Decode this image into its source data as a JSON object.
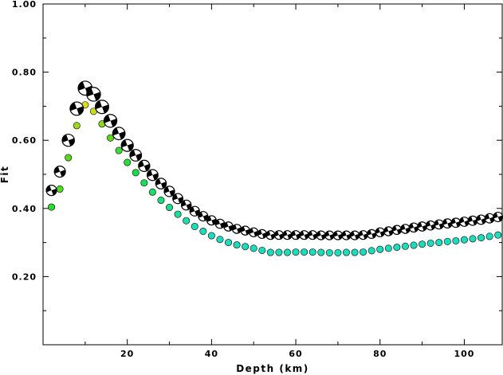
{
  "chart_data": {
    "type": "scatter",
    "xlabel": "Depth (km)",
    "ylabel": "Fit",
    "xlim": [
      0,
      109
    ],
    "ylim": [
      0.0,
      1.0
    ],
    "xticks": [
      20,
      40,
      60,
      80,
      100
    ],
    "yticks": [
      0.2,
      0.4,
      0.6,
      0.8,
      1.0
    ],
    "x_tick_labels": [
      "20",
      "40",
      "60",
      "80",
      "100"
    ],
    "y_tick_labels": [
      "0.20",
      "0.40",
      "0.60",
      "0.80",
      "1.00"
    ],
    "grid": false,
    "series": [
      {
        "marker": "focal-mechanism beachball",
        "color": "#000000",
        "x": [
          2,
          4,
          6,
          8,
          10,
          12,
          14,
          16,
          18,
          20,
          22,
          24,
          26,
          28,
          30,
          32,
          34,
          36,
          38,
          40,
          42,
          44,
          46,
          48,
          50,
          52,
          54,
          56,
          58,
          60,
          62,
          64,
          66,
          68,
          70,
          72,
          74,
          76,
          78,
          80,
          82,
          84,
          86,
          88,
          90,
          92,
          94,
          96,
          98,
          100,
          102,
          104,
          106,
          108
        ],
        "y": [
          0.453,
          0.508,
          0.6,
          0.693,
          0.753,
          0.735,
          0.698,
          0.657,
          0.62,
          0.585,
          0.556,
          0.525,
          0.498,
          0.473,
          0.45,
          0.429,
          0.41,
          0.392,
          0.377,
          0.365,
          0.355,
          0.347,
          0.34,
          0.335,
          0.33,
          0.325,
          0.322,
          0.322,
          0.322,
          0.322,
          0.322,
          0.322,
          0.321,
          0.321,
          0.321,
          0.321,
          0.321,
          0.322,
          0.325,
          0.33,
          0.333,
          0.337,
          0.34,
          0.344,
          0.347,
          0.35,
          0.353,
          0.356,
          0.358,
          0.361,
          0.364,
          0.367,
          0.371,
          0.375
        ]
      },
      {
        "marker": "filled circle",
        "x": [
          2,
          4,
          6,
          8,
          10,
          12,
          14,
          16,
          18,
          20,
          22,
          24,
          26,
          28,
          30,
          32,
          34,
          36,
          38,
          40,
          42,
          44,
          46,
          48,
          50,
          52,
          54,
          56,
          58,
          60,
          62,
          64,
          66,
          68,
          70,
          72,
          74,
          76,
          78,
          80,
          82,
          84,
          86,
          88,
          90,
          92,
          94,
          96,
          98,
          100,
          102,
          104,
          106,
          108
        ],
        "y": [
          0.404,
          0.457,
          0.549,
          0.643,
          0.704,
          0.685,
          0.648,
          0.607,
          0.57,
          0.535,
          0.505,
          0.475,
          0.448,
          0.424,
          0.403,
          0.383,
          0.364,
          0.347,
          0.333,
          0.32,
          0.309,
          0.3,
          0.293,
          0.288,
          0.283,
          0.277,
          0.271,
          0.271,
          0.271,
          0.272,
          0.272,
          0.272,
          0.271,
          0.27,
          0.27,
          0.271,
          0.271,
          0.272,
          0.276,
          0.28,
          0.283,
          0.286,
          0.289,
          0.292,
          0.295,
          0.298,
          0.3,
          0.303,
          0.305,
          0.308,
          0.311,
          0.314,
          0.318,
          0.322
        ],
        "colors": [
          "#2cdc2c",
          "#4ce01c",
          "#5cd81c",
          "#9cd81c",
          "#dcdc1c",
          "#c8dc1c",
          "#8cd81c",
          "#5cd81c",
          "#3cdc3c",
          "#2cdc3c",
          "#1cdc4c",
          "#1cdc5c",
          "#1cdc6c",
          "#1cdc7c",
          "#1cdc8c",
          "#1cdc9c",
          "#1cdcac",
          "#1cdcbc",
          "#1cdcbc",
          "#1cdcbc",
          "#1cdcbc",
          "#1cdcbc",
          "#1cdcbc",
          "#1cdcbc",
          "#1cdcbc",
          "#1cdcbc",
          "#1cdcbc",
          "#1cdcbc",
          "#1cdcbc",
          "#1cdcbc",
          "#1cdcbc",
          "#1cdcbc",
          "#1cdcbc",
          "#1cdcbc",
          "#1cdcbc",
          "#1cdcbc",
          "#1cdcbc",
          "#1cdcbc",
          "#1cdcbc",
          "#1cdcbc",
          "#1cdcbc",
          "#1cdcbc",
          "#1cdcbc",
          "#1cdcbc",
          "#1cdcbc",
          "#1cdcbc",
          "#1cdcbc",
          "#1cdcbc",
          "#1cdcbc",
          "#1cdcbc",
          "#1cdcbc",
          "#1cdcbc",
          "#1cdcbc",
          "#1cdcbc"
        ]
      }
    ]
  }
}
